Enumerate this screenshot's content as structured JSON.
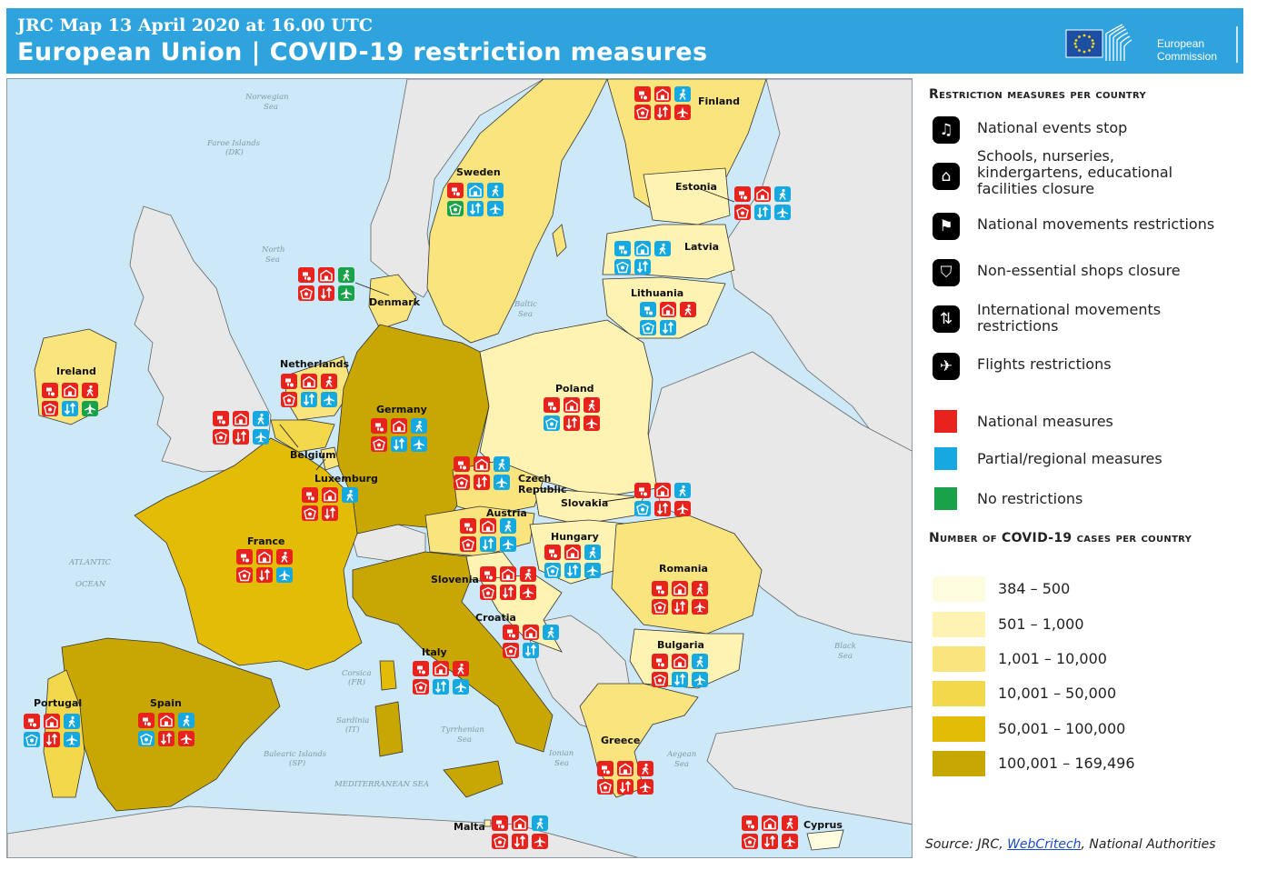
{
  "header": {
    "subtitle": "JRC Map 13 April 2020 at 16.00 UTC",
    "title": "European Union | COVID-19 restriction measures",
    "logo_line1": "European",
    "logo_line2": "Commission"
  },
  "colors": {
    "national": "#e8221c",
    "partial": "#16a9e1",
    "none": "#1aa24a",
    "sea": "#cde8f6",
    "non_eu": "#e8e8e8",
    "ramp": [
      "#fefcdf",
      "#fef3b3",
      "#f9e47d",
      "#f2d84a",
      "#e2bc07",
      "#c9a703"
    ]
  },
  "legend": {
    "measures_title": "Restriction measures per country",
    "measures": [
      {
        "icon": "events-icon",
        "glyph": "♫",
        "label": "National events stop"
      },
      {
        "icon": "school-icon",
        "glyph": "⌂",
        "label": "Schools, nurseries, kindergartens, educational facilities closure"
      },
      {
        "icon": "walking-icon",
        "glyph": "⚑",
        "label": "National movements restrictions"
      },
      {
        "icon": "shop-icon",
        "glyph": "⛉",
        "label": "Non-essential shops closure"
      },
      {
        "icon": "arrows-icon",
        "glyph": "⇅",
        "label": "International movements restrictions"
      },
      {
        "icon": "plane-icon",
        "glyph": "✈",
        "label": "Flights restrictions"
      }
    ],
    "types": [
      {
        "label": "National measures",
        "color": "#e8221c"
      },
      {
        "label": "Partial/regional measures",
        "color": "#16a9e1"
      },
      {
        "label": "No restrictions",
        "color": "#1aa24a"
      }
    ],
    "cases_title": "Number of COVID-19 cases per country",
    "cases": [
      {
        "label": "384 – 500",
        "color": "#fefcdf"
      },
      {
        "label": "501 – 1,000",
        "color": "#fef3b3"
      },
      {
        "label": "1,001 – 10,000",
        "color": "#f9e47d"
      },
      {
        "label": "10,001 – 50,000",
        "color": "#f2d84a"
      },
      {
        "label": "50,001 – 100,000",
        "color": "#e2bc07"
      },
      {
        "label": "100,001 – 169,496",
        "color": "#c9a703"
      }
    ],
    "source_prefix": "Source: JRC, ",
    "source_link": "WebCritech",
    "source_suffix": ", National Authorities"
  },
  "seas": [
    {
      "text": "Norwegian"
    },
    {
      "text": "Sea"
    },
    {
      "text": "Faroe Islands"
    },
    {
      "text": "(DK)"
    },
    {
      "text": "North"
    },
    {
      "text": "Sea"
    },
    {
      "text": "Baltic"
    },
    {
      "text": "Sea"
    },
    {
      "text": "ATLANTIC"
    },
    {
      "text": "OCEAN"
    },
    {
      "text": "Corsica"
    },
    {
      "text": "(FR)"
    },
    {
      "text": "Sardinia"
    },
    {
      "text": "(IT)"
    },
    {
      "text": "Balearic Islands"
    },
    {
      "text": "(SP)"
    },
    {
      "text": "Tyrrhenian"
    },
    {
      "text": "Sea"
    },
    {
      "text": "Ionian"
    },
    {
      "text": "Sea"
    },
    {
      "text": "Aegean"
    },
    {
      "text": "Sea"
    },
    {
      "text": "Black"
    },
    {
      "text": "Sea"
    },
    {
      "text": "MEDITERRANEAN SEA"
    }
  ],
  "countries": [
    {
      "name": "Finland",
      "m": [
        "N",
        "N",
        "P",
        "N",
        "N",
        "N"
      ]
    },
    {
      "name": "Sweden",
      "m": [
        "N",
        "P",
        "P",
        "Z",
        "P",
        "P"
      ]
    },
    {
      "name": "Estonia",
      "m": [
        "N",
        "N",
        "P",
        "N",
        "P",
        "P"
      ]
    },
    {
      "name": "Latvia",
      "m": [
        "P",
        "P",
        "P",
        "P",
        "P",
        "X"
      ]
    },
    {
      "name": "Lithuania",
      "m": [
        "P",
        "N",
        "N",
        "P",
        "P",
        "X"
      ]
    },
    {
      "name": "Denmark",
      "m": [
        "N",
        "N",
        "Z",
        "N",
        "N",
        "Z"
      ]
    },
    {
      "name": "Ireland",
      "m": [
        "N",
        "N",
        "N",
        "N",
        "P",
        "Z"
      ]
    },
    {
      "name": "Netherlands",
      "m": [
        "N",
        "N",
        "N",
        "N",
        "P",
        "P"
      ]
    },
    {
      "name": "Belgium",
      "m": [
        "N",
        "N",
        "P",
        "N",
        "N",
        "P"
      ]
    },
    {
      "name": "Germany",
      "m": [
        "N",
        "N",
        "P",
        "N",
        "P",
        "P"
      ]
    },
    {
      "name": "Poland",
      "m": [
        "N",
        "N",
        "N",
        "P",
        "N",
        "N"
      ]
    },
    {
      "name": "Luxemburg",
      "m": [
        "N",
        "N",
        "P",
        "N",
        "N",
        "X"
      ]
    },
    {
      "name": "Czech Republic",
      "m": [
        "N",
        "N",
        "P",
        "N",
        "N",
        "P"
      ]
    },
    {
      "name": "Slovakia",
      "m": [
        "N",
        "N",
        "P",
        "P",
        "N",
        "N"
      ]
    },
    {
      "name": "Austria",
      "m": [
        "N",
        "N",
        "P",
        "N",
        "P",
        "P"
      ]
    },
    {
      "name": "Hungary",
      "m": [
        "N",
        "N",
        "P",
        "P",
        "P",
        "P"
      ]
    },
    {
      "name": "France",
      "m": [
        "N",
        "N",
        "N",
        "N",
        "N",
        "P"
      ]
    },
    {
      "name": "Slovenia",
      "m": [
        "N",
        "N",
        "N",
        "N",
        "N",
        "N"
      ]
    },
    {
      "name": "Romania",
      "m": [
        "N",
        "N",
        "N",
        "N",
        "N",
        "N"
      ]
    },
    {
      "name": "Croatia",
      "m": [
        "N",
        "N",
        "P",
        "N",
        "P",
        "X"
      ]
    },
    {
      "name": "Bulgaria",
      "m": [
        "N",
        "N",
        "P",
        "N",
        "P",
        "P"
      ]
    },
    {
      "name": "Italy",
      "m": [
        "N",
        "N",
        "N",
        "N",
        "P",
        "P"
      ]
    },
    {
      "name": "Portugal",
      "m": [
        "N",
        "N",
        "P",
        "P",
        "N",
        "P"
      ]
    },
    {
      "name": "Spain",
      "m": [
        "N",
        "N",
        "P",
        "P",
        "N",
        "N"
      ]
    },
    {
      "name": "Greece",
      "m": [
        "N",
        "N",
        "N",
        "N",
        "N",
        "N"
      ]
    },
    {
      "name": "Malta",
      "m": [
        "N",
        "N",
        "P",
        "N",
        "N",
        "N"
      ]
    },
    {
      "name": "Cyprus",
      "m": [
        "N",
        "N",
        "N",
        "N",
        "N",
        "N"
      ]
    }
  ]
}
